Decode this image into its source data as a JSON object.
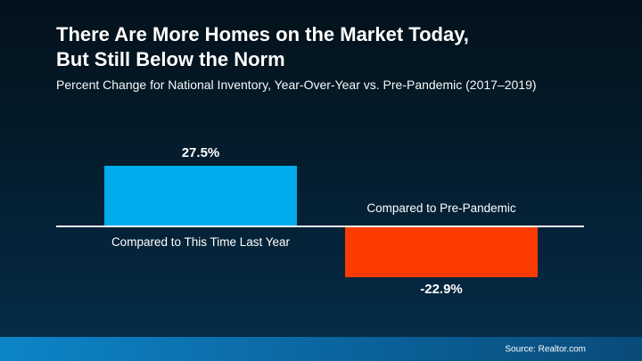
{
  "header": {
    "title_line1": "There Are More Homes on the Market Today,",
    "title_line2": "But Still Below the Norm",
    "subtitle": "Percent Change for National Inventory, Year-Over-Year vs. Pre-Pandemic (2017–2019)"
  },
  "chart_data": {
    "type": "bar",
    "title": "There Are More Homes on the Market Today, But Still Below the Norm",
    "subtitle": "Percent Change for National Inventory, Year-Over-Year vs. Pre-Pandemic (2017–2019)",
    "categories": [
      "Compared to This Time Last Year",
      "Compared to Pre-Pandemic"
    ],
    "values": [
      27.5,
      -22.9
    ],
    "value_labels": [
      "27.5%",
      "-22.9%"
    ],
    "bar_colors": [
      "#00ACEC",
      "#FB3B02"
    ],
    "baseline": 0,
    "ylim": [
      -30,
      35
    ],
    "grid": false,
    "legend": "none",
    "xlabel": "",
    "ylabel": ""
  },
  "footer": {
    "source": "Source: Realtor.com"
  },
  "colors": {
    "background_top": "#03121C",
    "background_bottom": "#063049",
    "bar_positive": "#00ACEC",
    "bar_negative": "#FB3B02",
    "axis_line": "#F4F6F8",
    "footer_gradient_left": "#0D85C9",
    "footer_gradient_right": "#094B7A",
    "text": "#FFFFFF"
  }
}
